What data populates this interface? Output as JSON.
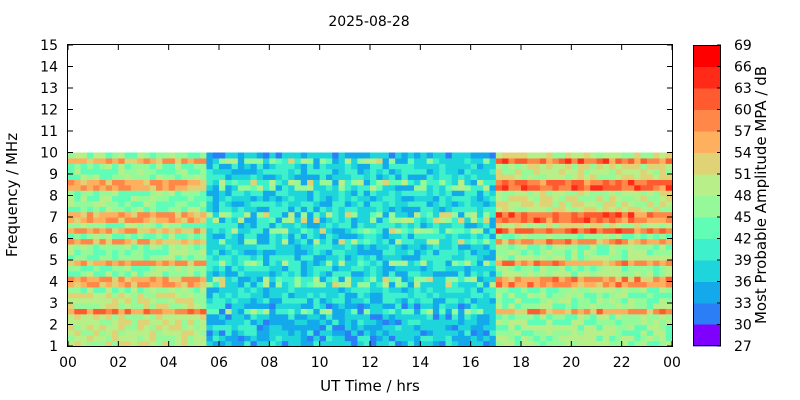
{
  "chart_data": {
    "type": "heatmap",
    "title": "2025-08-28",
    "xlabel": "UT Time / hrs",
    "ylabel": "Frequency / MHz",
    "xlim": [
      0,
      24
    ],
    "ylim": [
      1,
      15
    ],
    "x_ticks": [
      "00",
      "02",
      "04",
      "06",
      "08",
      "10",
      "12",
      "14",
      "16",
      "18",
      "20",
      "22",
      "00"
    ],
    "y_ticks": [
      "1",
      "2",
      "3",
      "4",
      "5",
      "6",
      "7",
      "8",
      "9",
      "10",
      "11",
      "12",
      "13",
      "14",
      "15"
    ],
    "data_freq_range": [
      1,
      10
    ],
    "colorbar": {
      "label": "Most Probable Amplitude MPA / dB",
      "range": [
        27,
        69
      ],
      "ticks": [
        "27",
        "30",
        "33",
        "36",
        "39",
        "42",
        "45",
        "48",
        "51",
        "54",
        "57",
        "60",
        "63",
        "66",
        "69"
      ],
      "colors": [
        "#7f00ff",
        "#5540fc",
        "#2b7ef6",
        "#14a9eb",
        "#1fd5dc",
        "#3ef0cb",
        "#61fdb6",
        "#95f99a",
        "#b8ef88",
        "#e0d375",
        "#ffb05f",
        "#ff8748",
        "#ff5a30",
        "#ff2a17",
        "#ff0000"
      ]
    },
    "mpa_profile_by_period": [
      {
        "period": "00-05.5 UT",
        "typical_dB": 46,
        "description_range_dB": [
          40,
          55
        ]
      },
      {
        "period": "05.5-17 UT",
        "typical_dB": 38,
        "description_range_dB": [
          34,
          42
        ]
      },
      {
        "period": "17-24 UT",
        "typical_dB": 47,
        "description_range_dB": [
          42,
          60
        ]
      }
    ],
    "interference_lines_MHz": [
      9.6,
      8.5,
      7.0,
      6.3,
      5.8,
      4.8,
      4.0,
      2.6
    ]
  }
}
